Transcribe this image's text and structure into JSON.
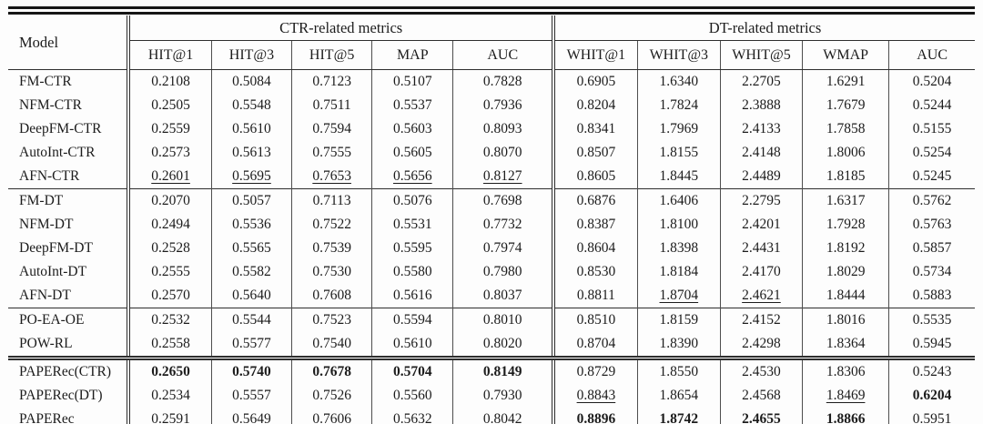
{
  "colors": {
    "background": "#fdfdfd",
    "text": "#1c1c1c",
    "rule": "#2e2e2e"
  },
  "table": {
    "model_header": "Model",
    "group_headers": [
      "CTR-related metrics",
      "DT-related metrics"
    ],
    "columns": [
      "HIT@1",
      "HIT@3",
      "HIT@5",
      "MAP",
      "AUC",
      "WHIT@1",
      "WHIT@3",
      "WHIT@5",
      "WMAP",
      "AUC"
    ],
    "groups": [
      {
        "separator": "none",
        "rows": [
          {
            "model": "FM-CTR",
            "values": [
              "0.2108",
              "0.5084",
              "0.7123",
              "0.5107",
              "0.7828",
              "0.6905",
              "1.6340",
              "2.2705",
              "1.6291",
              "0.5204"
            ]
          },
          {
            "model": "NFM-CTR",
            "values": [
              "0.2505",
              "0.5548",
              "0.7511",
              "0.5537",
              "0.7936",
              "0.8204",
              "1.7824",
              "2.3888",
              "1.7679",
              "0.5244"
            ]
          },
          {
            "model": "DeepFM-CTR",
            "values": [
              "0.2559",
              "0.5610",
              "0.7594",
              "0.5603",
              "0.8093",
              "0.8341",
              "1.7969",
              "2.4133",
              "1.7858",
              "0.5155"
            ]
          },
          {
            "model": "AutoInt-CTR",
            "values": [
              "0.2573",
              "0.5613",
              "0.7555",
              "0.5605",
              "0.8070",
              "0.8507",
              "1.8155",
              "2.4148",
              "1.8006",
              "0.5254"
            ]
          },
          {
            "model": "AFN-CTR",
            "values": [
              "0.2601",
              "0.5695",
              "0.7653",
              "0.5656",
              "0.8127",
              "0.8605",
              "1.8445",
              "2.4489",
              "1.8185",
              "0.5245"
            ],
            "styles": [
              "u",
              "u",
              "u",
              "u",
              "u",
              "",
              "",
              "",
              "",
              ""
            ]
          }
        ]
      },
      {
        "separator": "single",
        "rows": [
          {
            "model": "FM-DT",
            "values": [
              "0.2070",
              "0.5057",
              "0.7113",
              "0.5076",
              "0.7698",
              "0.6876",
              "1.6406",
              "2.2795",
              "1.6317",
              "0.5762"
            ]
          },
          {
            "model": "NFM-DT",
            "values": [
              "0.2494",
              "0.5536",
              "0.7522",
              "0.5531",
              "0.7732",
              "0.8387",
              "1.8100",
              "2.4201",
              "1.7928",
              "0.5763"
            ]
          },
          {
            "model": "DeepFM-DT",
            "values": [
              "0.2528",
              "0.5565",
              "0.7539",
              "0.5595",
              "0.7974",
              "0.8604",
              "1.8398",
              "2.4431",
              "1.8192",
              "0.5857"
            ]
          },
          {
            "model": "AutoInt-DT",
            "values": [
              "0.2555",
              "0.5582",
              "0.7530",
              "0.5580",
              "0.7980",
              "0.8530",
              "1.8184",
              "2.4170",
              "1.8029",
              "0.5734"
            ]
          },
          {
            "model": "AFN-DT",
            "values": [
              "0.2570",
              "0.5640",
              "0.7608",
              "0.5616",
              "0.8037",
              "0.8811",
              "1.8704",
              "2.4621",
              "1.8444",
              "0.5883"
            ],
            "styles": [
              "",
              "",
              "",
              "",
              "",
              "",
              "u",
              "u",
              "",
              ""
            ]
          }
        ]
      },
      {
        "separator": "single",
        "rows": [
          {
            "model": "PO-EA-OE",
            "values": [
              "0.2532",
              "0.5544",
              "0.7523",
              "0.5594",
              "0.8010",
              "0.8510",
              "1.8159",
              "2.4152",
              "1.8016",
              "0.5535"
            ]
          },
          {
            "model": "POW-RL",
            "values": [
              "0.2558",
              "0.5577",
              "0.7540",
              "0.5610",
              "0.8020",
              "0.8704",
              "1.8390",
              "2.4298",
              "1.8364",
              "0.5945"
            ]
          }
        ]
      },
      {
        "separator": "double",
        "rows": [
          {
            "model": "PAPERec(CTR)",
            "values": [
              "0.2650",
              "0.5740",
              "0.7678",
              "0.5704",
              "0.8149",
              "0.8729",
              "1.8550",
              "2.4530",
              "1.8306",
              "0.5243"
            ],
            "styles": [
              "b",
              "b",
              "b",
              "b",
              "b",
              "",
              "",
              "",
              "",
              ""
            ]
          },
          {
            "model": "PAPERec(DT)",
            "values": [
              "0.2534",
              "0.5557",
              "0.7526",
              "0.5560",
              "0.7930",
              "0.8843",
              "1.8654",
              "2.4568",
              "1.8469",
              "0.6204"
            ],
            "styles": [
              "",
              "",
              "",
              "",
              "",
              "u",
              "",
              "",
              "u",
              "b"
            ]
          },
          {
            "model": "PAPERec",
            "values": [
              "0.2591",
              "0.5649",
              "0.7606",
              "0.5632",
              "0.8042",
              "0.8896",
              "1.8742",
              "2.4655",
              "1.8866",
              "0.5951"
            ],
            "styles": [
              "",
              "",
              "",
              "",
              "",
              "b",
              "b",
              "b",
              "b",
              "u"
            ]
          }
        ]
      }
    ]
  }
}
